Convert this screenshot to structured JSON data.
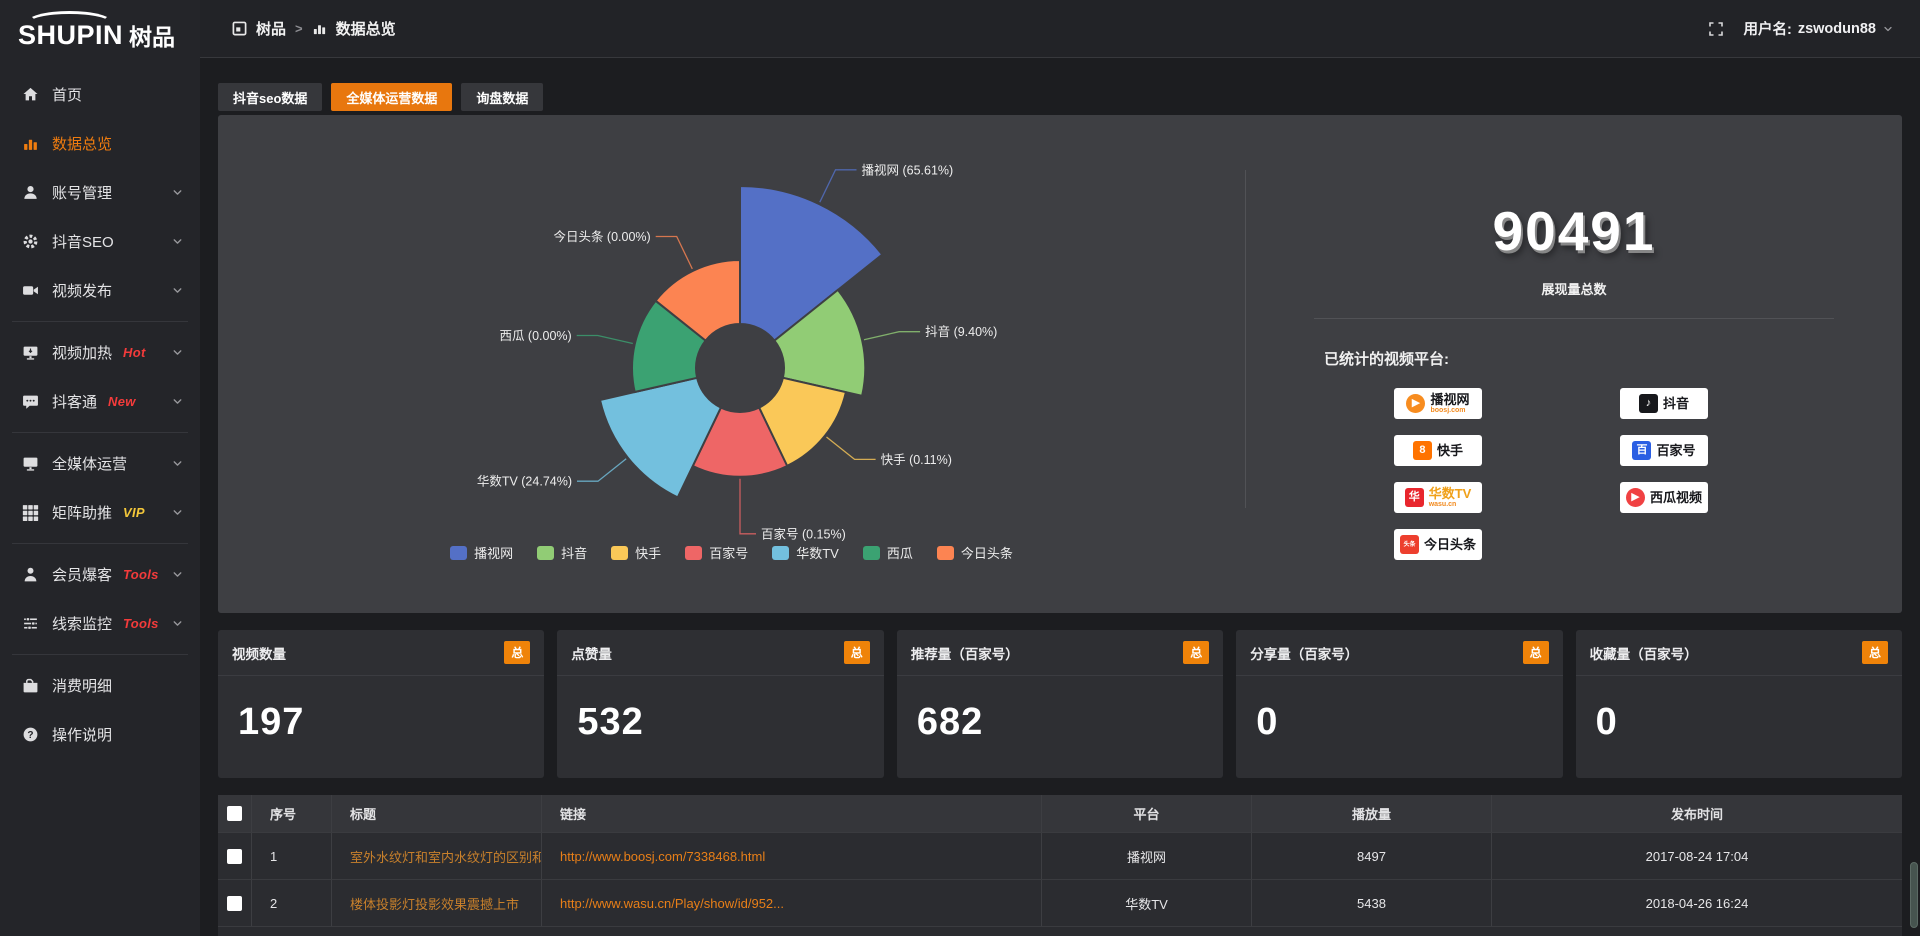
{
  "topbar": {
    "logo_en": "SHUPIN",
    "logo_cn": "树品",
    "breadcrumb": [
      {
        "label": "树品"
      },
      {
        "label": "数据总览"
      }
    ],
    "breadcrumb_separator": ">",
    "user_label": "用户名:",
    "username": "zswodun88"
  },
  "sidebar": {
    "items": [
      {
        "key": "home",
        "label": "首页",
        "icon": "home"
      },
      {
        "key": "data-overview",
        "label": "数据总览",
        "icon": "chart",
        "active": true
      },
      {
        "key": "account-manage",
        "label": "账号管理",
        "icon": "user",
        "chevron": true
      },
      {
        "key": "douyin-seo",
        "label": "抖音SEO",
        "icon": "gear",
        "chevron": true
      },
      {
        "key": "video-publish",
        "label": "视频发布",
        "icon": "video",
        "chevron": true,
        "divider_after": true
      },
      {
        "key": "video-heat",
        "label": "视频加热",
        "icon": "screen",
        "chevron": true,
        "badge": "Hot",
        "badge_color": "#f43b3b"
      },
      {
        "key": "douke-tong",
        "label": "抖客通",
        "icon": "chat",
        "chevron": true,
        "badge": "New",
        "badge_color": "#f43b3b",
        "divider_after": true
      },
      {
        "key": "omni-media",
        "label": "全媒体运营",
        "icon": "monitor",
        "chevron": true
      },
      {
        "key": "matrix-boost",
        "label": "矩阵助推",
        "icon": "grid",
        "chevron": true,
        "badge": "VIP",
        "badge_color": "#f3c73a",
        "divider_after": true
      },
      {
        "key": "member-burst",
        "label": "会员爆客",
        "icon": "member",
        "chevron": true,
        "badge": "Tools",
        "badge_color": "#f43b3b"
      },
      {
        "key": "lead-monitor",
        "label": "线索监控",
        "icon": "sliders",
        "chevron": true,
        "badge": "Tools",
        "badge_color": "#f43b3b",
        "divider_after": true
      },
      {
        "key": "expense-detail",
        "label": "消费明细",
        "icon": "wallet"
      },
      {
        "key": "instructions",
        "label": "操作说明",
        "icon": "help"
      }
    ]
  },
  "tabs": {
    "items": [
      {
        "key": "douyin-seo-data",
        "label": "抖音seo数据",
        "active": false
      },
      {
        "key": "omni-media-data",
        "label": "全媒体运营数据",
        "active": true
      },
      {
        "key": "inquiry-data",
        "label": "询盘数据",
        "active": false
      }
    ]
  },
  "chart_data": {
    "type": "pie",
    "subtype": "nightingale-rose",
    "categories": [
      "播视网",
      "抖音",
      "快手",
      "百家号",
      "华数TV",
      "西瓜",
      "今日头条"
    ],
    "values_percent": [
      65.61,
      9.4,
      0.11,
      0.15,
      24.74,
      0.0,
      0.0
    ],
    "labels": [
      "播视网 (65.61%)",
      "抖音 (9.40%)",
      "快手 (0.11%)",
      "百家号 (0.15%)",
      "华数TV (24.74%)",
      "西瓜 (0.00%)",
      "今日头条 (0.00%)"
    ],
    "colors": [
      "#5470c6",
      "#91cc75",
      "#fac858",
      "#ee6666",
      "#73c0de",
      "#3ba272",
      "#fc8452"
    ],
    "legend": [
      "播视网",
      "抖音",
      "快手",
      "百家号",
      "华数TV",
      "西瓜",
      "今日头条"
    ],
    "legend_position": "bottom"
  },
  "summary": {
    "value": "90491",
    "label": "展现量总数"
  },
  "platforms": {
    "title": "已统计的视频平台:",
    "items": [
      {
        "name": "播视网",
        "sub": "boosj.com",
        "icon_char": "▶",
        "icon_bg": "#f78c1f",
        "icon_shape": "circle"
      },
      {
        "name": "抖音",
        "icon_char": "♪",
        "icon_bg": "#17181c",
        "icon_shape": "square"
      },
      {
        "name": "快手",
        "icon_char": "8",
        "icon_bg": "#ff7300",
        "icon_shape": "square"
      },
      {
        "name": "百家号",
        "icon_char": "百",
        "icon_bg": "#2b5fe3",
        "icon_shape": "square"
      },
      {
        "name": "华数TV",
        "sub": "wasu.cn",
        "name_color": "#f0a11a",
        "icon_char": "华",
        "icon_bg": "#e8262d",
        "icon_shape": "square"
      },
      {
        "name": "西瓜视频",
        "icon_char": "▶",
        "icon_bg": "#f04142",
        "icon_shape": "circle"
      },
      {
        "name": "今日头条",
        "icon_char": "头条",
        "icon_bg": "#ed3f2e",
        "icon_shape": "square",
        "icon_tiny": true
      }
    ]
  },
  "stat_cards": [
    {
      "title": "视频数量",
      "badge": "总",
      "value": "197"
    },
    {
      "title": "点赞量",
      "badge": "总",
      "value": "532"
    },
    {
      "title": "推荐量（百家号）",
      "badge": "总",
      "value": "682"
    },
    {
      "title": "分享量（百家号）",
      "badge": "总",
      "value": "0"
    },
    {
      "title": "收藏量（百家号）",
      "badge": "总",
      "value": "0"
    }
  ],
  "table": {
    "headers": [
      "序号",
      "标题",
      "链接",
      "平台",
      "播放量",
      "发布时间"
    ],
    "rows": [
      {
        "index": "1",
        "title": "室外水纹灯和室内水纹灯的区别和简介",
        "link": "http://www.boosj.com/7338468.html",
        "platform": "播视网",
        "plays": "8497",
        "published": "2017-08-24 17:04"
      },
      {
        "index": "2",
        "title": "楼体投影灯投影效果震撼上市",
        "link": "http://www.wasu.cn/Play/show/id/952...",
        "platform": "华数TV",
        "plays": "5438",
        "published": "2018-04-26 16:24"
      }
    ]
  }
}
